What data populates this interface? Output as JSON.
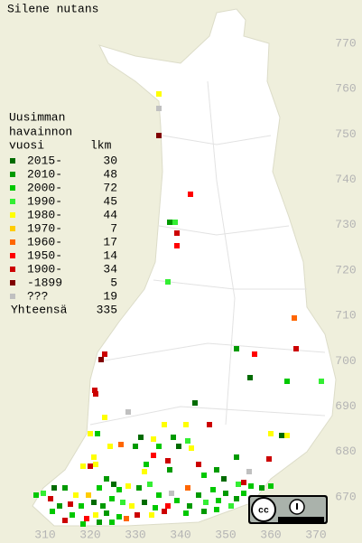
{
  "title": "Silene nutans",
  "legend": {
    "heading": [
      "Uusimman",
      "havainnon",
      "vuosi"
    ],
    "count_header": "lkm",
    "items": [
      {
        "label": "2015-",
        "count": 30,
        "color": "#006b00"
      },
      {
        "label": "2010-",
        "count": 48,
        "color": "#009a00"
      },
      {
        "label": "2000-",
        "count": 72,
        "color": "#00c800"
      },
      {
        "label": "1990-",
        "count": 45,
        "color": "#33ee33"
      },
      {
        "label": "1980-",
        "count": 44,
        "color": "#ffff00"
      },
      {
        "label": "1970-",
        "count": 7,
        "color": "#ffcc00"
      },
      {
        "label": "1960-",
        "count": 17,
        "color": "#ff6600"
      },
      {
        "label": "1950-",
        "count": 14,
        "color": "#ff0000"
      },
      {
        "label": "1900-",
        "count": 34,
        "color": "#cc0000"
      },
      {
        "label": "-1899",
        "count": 5,
        "color": "#800000"
      },
      {
        "label": "???",
        "count": 19,
        "color": "#c0c0c0"
      }
    ],
    "total": {
      "label": "Yhteensä",
      "count": 335
    }
  },
  "x_axis": [
    310,
    320,
    330,
    340,
    350,
    360,
    370
  ],
  "y_axis": [
    770,
    760,
    750,
    740,
    730,
    720,
    710,
    700,
    690,
    680,
    670
  ]
}
